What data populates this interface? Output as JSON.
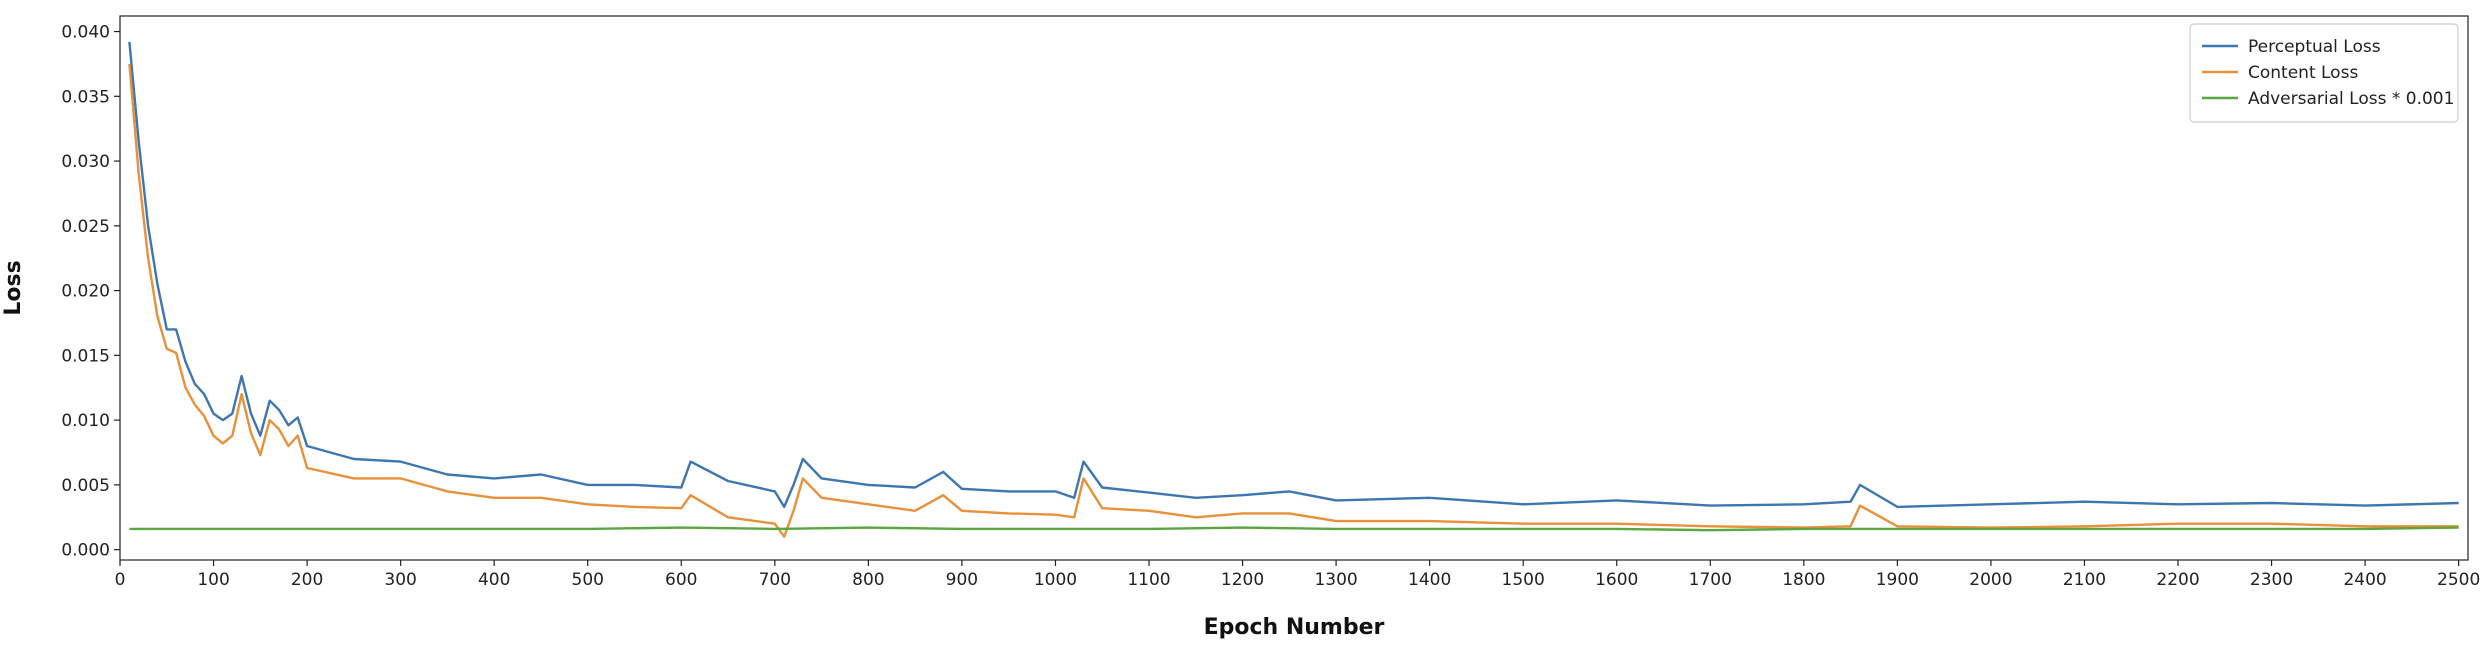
{
  "chart_data": {
    "type": "line",
    "xlabel": "Epoch Number",
    "ylabel": "Loss",
    "xlim": [
      0,
      2510
    ],
    "ylim": [
      -0.0008,
      0.0412
    ],
    "xticks": [
      0,
      100,
      200,
      300,
      400,
      500,
      600,
      700,
      800,
      900,
      1000,
      1100,
      1200,
      1300,
      1400,
      1500,
      1600,
      1700,
      1800,
      1900,
      2000,
      2100,
      2200,
      2300,
      2400,
      2500
    ],
    "yticks": [
      0.0,
      0.005,
      0.01,
      0.015,
      0.02,
      0.025,
      0.03,
      0.035,
      0.04
    ],
    "ytick_labels": [
      "0.000",
      "0.005",
      "0.010",
      "0.015",
      "0.020",
      "0.025",
      "0.030",
      "0.035",
      "0.040"
    ],
    "legend_position": "top-right",
    "grid": false,
    "series": [
      {
        "name": "Perceptual Loss",
        "color": "#3d76b0",
        "x": [
          10,
          20,
          30,
          40,
          50,
          60,
          70,
          80,
          90,
          100,
          110,
          120,
          130,
          140,
          150,
          160,
          170,
          180,
          190,
          200,
          250,
          300,
          350,
          400,
          450,
          500,
          550,
          600,
          610,
          650,
          700,
          710,
          720,
          730,
          750,
          800,
          850,
          880,
          900,
          950,
          1000,
          1020,
          1030,
          1050,
          1100,
          1150,
          1200,
          1250,
          1300,
          1400,
          1500,
          1600,
          1700,
          1800,
          1850,
          1860,
          1900,
          2000,
          2100,
          2200,
          2300,
          2400,
          2500
        ],
        "values": [
          0.0392,
          0.0315,
          0.025,
          0.0205,
          0.017,
          0.017,
          0.0145,
          0.0128,
          0.012,
          0.0105,
          0.01,
          0.0105,
          0.0134,
          0.0105,
          0.0088,
          0.0115,
          0.0108,
          0.0096,
          0.0102,
          0.008,
          0.007,
          0.0068,
          0.0058,
          0.0055,
          0.0058,
          0.005,
          0.005,
          0.0048,
          0.0068,
          0.0053,
          0.0045,
          0.0033,
          0.005,
          0.007,
          0.0055,
          0.005,
          0.0048,
          0.006,
          0.0047,
          0.0045,
          0.0045,
          0.004,
          0.0068,
          0.0048,
          0.0044,
          0.004,
          0.0042,
          0.0045,
          0.0038,
          0.004,
          0.0035,
          0.0038,
          0.0034,
          0.0035,
          0.0037,
          0.005,
          0.0033,
          0.0035,
          0.0037,
          0.0035,
          0.0036,
          0.0034,
          0.0036
        ]
      },
      {
        "name": "Content Loss",
        "color": "#e8903a",
        "x": [
          10,
          20,
          30,
          40,
          50,
          60,
          70,
          80,
          90,
          100,
          110,
          120,
          130,
          140,
          150,
          160,
          170,
          180,
          190,
          200,
          250,
          300,
          350,
          400,
          450,
          500,
          550,
          600,
          610,
          650,
          700,
          710,
          720,
          730,
          750,
          800,
          850,
          880,
          900,
          950,
          1000,
          1020,
          1030,
          1050,
          1100,
          1150,
          1200,
          1250,
          1300,
          1400,
          1500,
          1600,
          1700,
          1800,
          1850,
          1860,
          1900,
          2000,
          2100,
          2200,
          2300,
          2400,
          2500
        ],
        "values": [
          0.0375,
          0.029,
          0.0225,
          0.018,
          0.0155,
          0.0152,
          0.0125,
          0.0112,
          0.0103,
          0.0088,
          0.0082,
          0.0088,
          0.012,
          0.009,
          0.0073,
          0.01,
          0.0093,
          0.008,
          0.0088,
          0.0063,
          0.0055,
          0.0055,
          0.0045,
          0.004,
          0.004,
          0.0035,
          0.0033,
          0.0032,
          0.0042,
          0.0025,
          0.002,
          0.001,
          0.003,
          0.0055,
          0.004,
          0.0035,
          0.003,
          0.0042,
          0.003,
          0.0028,
          0.0027,
          0.0025,
          0.0055,
          0.0032,
          0.003,
          0.0025,
          0.0028,
          0.0028,
          0.0022,
          0.0022,
          0.002,
          0.002,
          0.0018,
          0.0017,
          0.0018,
          0.0034,
          0.0018,
          0.0017,
          0.0018,
          0.002,
          0.002,
          0.0018,
          0.0018
        ]
      },
      {
        "name": "Adversarial Loss * 0.001",
        "color": "#5aa641",
        "x": [
          10,
          100,
          200,
          300,
          400,
          500,
          600,
          700,
          800,
          900,
          1000,
          1100,
          1200,
          1300,
          1400,
          1500,
          1600,
          1700,
          1800,
          1900,
          2000,
          2100,
          2200,
          2300,
          2400,
          2500
        ],
        "values": [
          0.0016,
          0.0016,
          0.0016,
          0.0016,
          0.0016,
          0.0016,
          0.0017,
          0.0016,
          0.0017,
          0.0016,
          0.0016,
          0.0016,
          0.0017,
          0.0016,
          0.0016,
          0.0016,
          0.0016,
          0.0015,
          0.0016,
          0.0016,
          0.0016,
          0.0016,
          0.0016,
          0.0016,
          0.0016,
          0.0017
        ]
      }
    ]
  }
}
